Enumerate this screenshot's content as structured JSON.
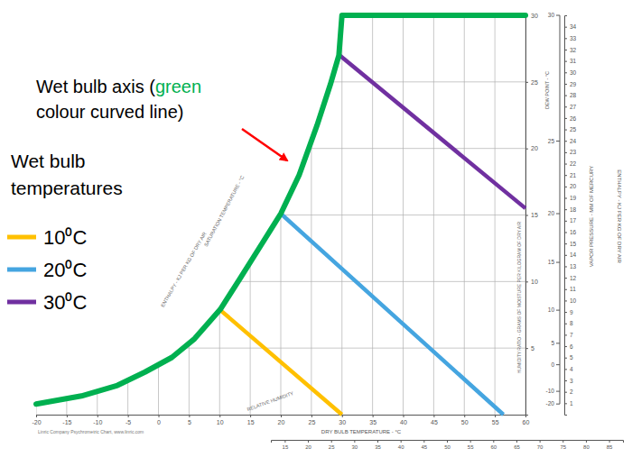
{
  "chart_data": {
    "type": "line",
    "title": "Linric Company Psychrometric Chart, www.linric.com",
    "x_label": "DRY BULB TEMPERATURE - °C",
    "y_label": "HUMIDITY RATIO - GRAMS OF MOISTURE PER KILOGRAM OF DRY AIR",
    "y2_label": "VAPOR PRESSURE - MM OF MERCURY",
    "x2_label": "ENTHALPY - KJ PER KG OF DRY AIR",
    "dew_point_label": "DEW POINT - °C",
    "saturation_label": "SATURATION TEMPERATURE - °C",
    "rh_label": "RELATIVE HUMIDITY",
    "annotation": {
      "lines": [
        [
          {
            "text": "Wet bulb axis (",
            "color": "#000000"
          },
          {
            "text": "green",
            "color": "#00b050"
          }
        ],
        [
          {
            "text": "colour curved line)",
            "color": "#000000"
          }
        ]
      ]
    },
    "legend_title": [
      "Wet bulb",
      "temperatures"
    ],
    "legend": "left",
    "grid": true,
    "xlim": [
      -20,
      60
    ],
    "xticks": [
      -20,
      -15,
      -10,
      -5,
      0,
      5,
      10,
      15,
      20,
      25,
      30,
      35,
      40,
      45,
      50,
      55,
      60
    ],
    "ylim": [
      0,
      30
    ],
    "yticks": [
      5,
      10,
      15,
      20,
      25,
      30
    ],
    "y2lim": [
      0,
      35
    ],
    "y2ticks": [
      1,
      2,
      3,
      4,
      5,
      6,
      7,
      8,
      9,
      10,
      11,
      12,
      13,
      14,
      15,
      16,
      17,
      18,
      19,
      20,
      21,
      22,
      23,
      24,
      25,
      26,
      27,
      28,
      29,
      30,
      31,
      32,
      33,
      34
    ],
    "x2lim": [
      12,
      88
    ],
    "x2ticks": [
      15,
      20,
      25,
      30,
      35,
      40,
      45,
      50,
      55,
      60,
      65,
      70,
      75,
      80,
      85
    ],
    "dew_point_ticks": [
      -20,
      -10,
      0,
      5,
      10,
      15,
      20,
      25,
      30
    ],
    "saturation_curve": {
      "color": "#00b050",
      "x": [
        -20,
        -12.6,
        -6.7,
        -2.2,
        2.2,
        5.9,
        10.1,
        13.3,
        17,
        20,
        23,
        25.9,
        28.1,
        29.5,
        30,
        60
      ],
      "values": [
        0.8,
        1.4,
        2.2,
        3.2,
        4.3,
        5.7,
        7.9,
        10.2,
        12.9,
        15.1,
        18.0,
        21.7,
        24.8,
        27.0,
        30,
        30
      ]
    },
    "series": [
      {
        "name": "10⁰C",
        "color": "#ffc000",
        "x": [
          10,
          30
        ],
        "values": [
          7.9,
          0
        ]
      },
      {
        "name": "20⁰C",
        "color": "#45a5e0",
        "x": [
          20,
          56.4
        ],
        "values": [
          15.1,
          0
        ]
      },
      {
        "name": "30⁰C",
        "color": "#7030a0",
        "x": [
          29.6,
          60
        ],
        "values": [
          27.0,
          15.5
        ]
      }
    ]
  }
}
